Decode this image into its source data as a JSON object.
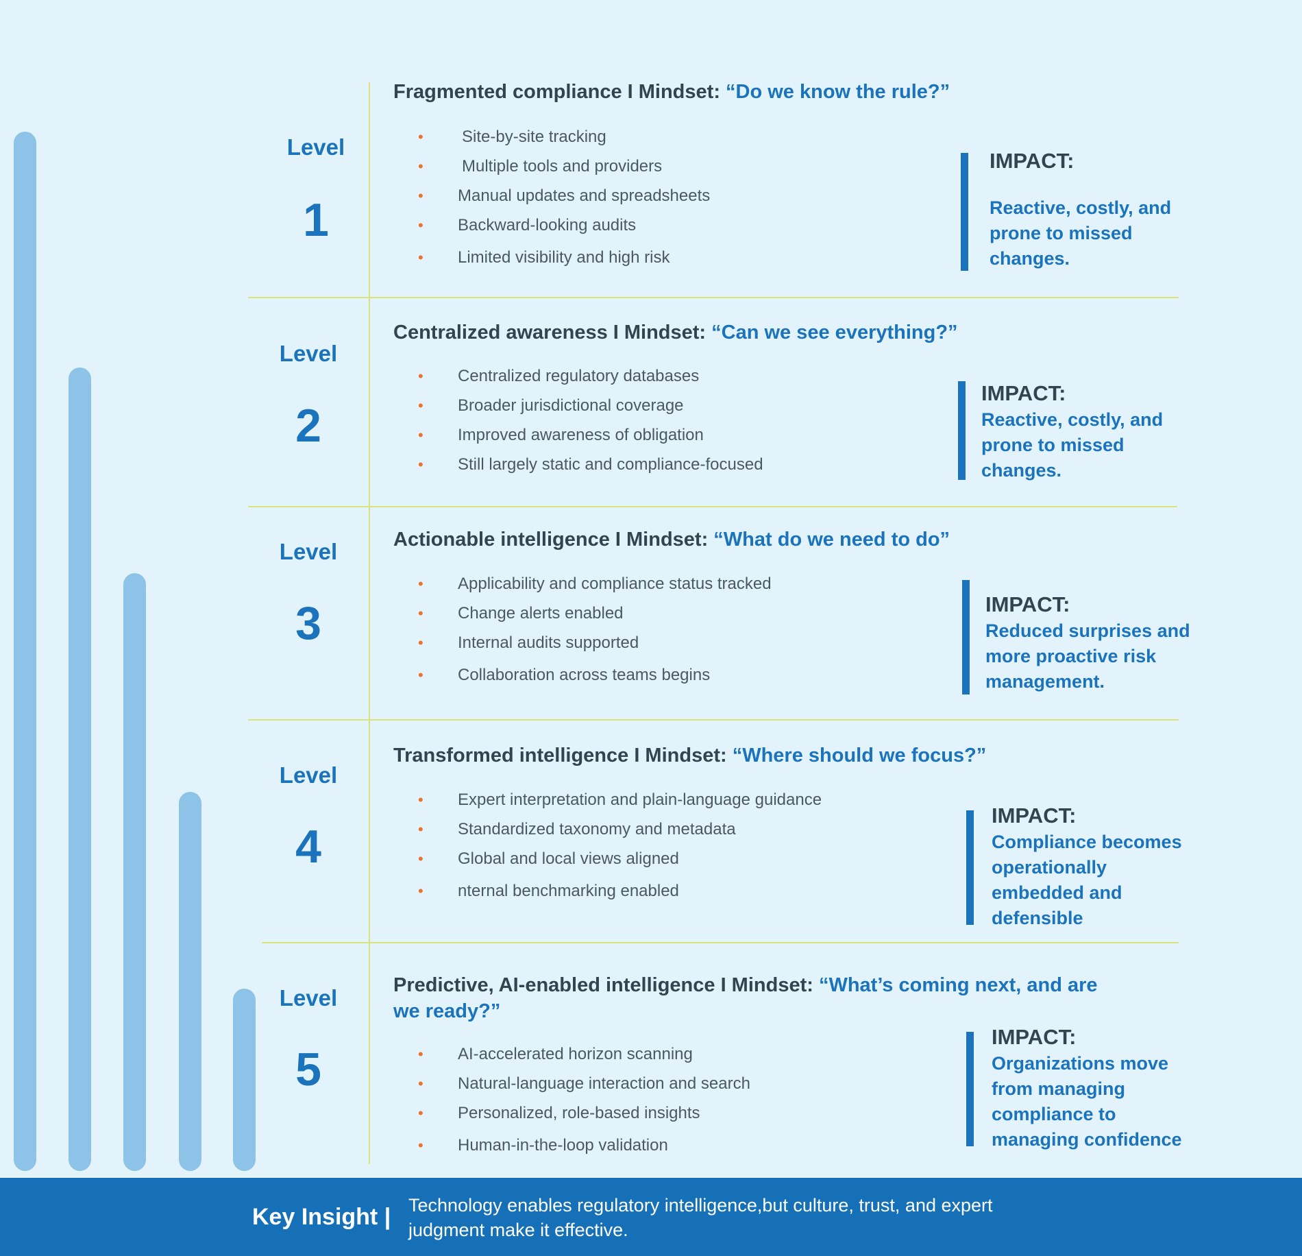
{
  "levels": [
    {
      "word": "Level",
      "number": "1",
      "heading": "Fragmented compliance I  Mindset: ",
      "mindset": "“Do we know the rule?”",
      "bullets": [
        "Site-by-site tracking",
        "Multiple tools and providers",
        "Manual updates and spreadsheets",
        "Backward-looking audits",
        "Limited visibility and high risk"
      ],
      "impact_title": "IMPACT:",
      "impact_body": "Reactive, costly, and prone to missed changes."
    },
    {
      "word": "Level",
      "number": "2",
      "heading": "Centralized awareness  I  Mindset: ",
      "mindset": "“Can we see everything?”",
      "bullets": [
        "Centralized regulatory databases",
        "Broader jurisdictional coverage",
        "Improved awareness of obligation",
        "Still largely static and compliance-focused"
      ],
      "impact_title": "IMPACT:",
      "impact_body": "Reactive, costly, and prone to missed changes."
    },
    {
      "word": "Level",
      "number": "3",
      "heading": "Actionable intelligence I  Mindset: ",
      "mindset": "“What do we need to do”",
      "bullets": [
        "Applicability and compliance status tracked",
        "Change alerts enabled",
        "Internal audits supported",
        "Collaboration across teams begins"
      ],
      "impact_title": "IMPACT:",
      "impact_body": "Reduced surprises and more proactive risk management."
    },
    {
      "word": "Level",
      "number": "4",
      "heading": "Transformed intelligence I  Mindset: ",
      "mindset": "“Where should we focus?”",
      "bullets": [
        "Expert interpretation and plain-language guidance",
        "Standardized taxonomy and metadata",
        "Global and local views aligned",
        "nternal benchmarking enabled"
      ],
      "impact_title": "IMPACT:",
      "impact_body": "Compliance becomes operationally embedded and defensible"
    },
    {
      "word": "Level",
      "number": "5",
      "heading": "Predictive,  AI-enabled  intelligence  I  Mindset: ",
      "mindset": "“What’s  coming  next, and are we ready?”",
      "bullets": [
        "AI-accelerated horizon scanning",
        "Natural-language interaction and search",
        "Personalized, role-based insights",
        "Human-in-the-loop validation"
      ],
      "impact_title": "IMPACT:",
      "impact_body": "Organizations move from managing compliance to managing confidence"
    }
  ],
  "bullet_glyph": "•",
  "footer": {
    "label": "Key Insight |",
    "text": "Technology enables regulatory intelligence,but culture, trust, and expert judgment make it effective."
  },
  "colors": {
    "background": "#e3f3fc",
    "accent_blue": "#1a73bb",
    "bar_blue": "#8ec3e8",
    "bullet_orange": "#e8732a",
    "divider": "#d9e37a",
    "footer": "#1570b8"
  }
}
